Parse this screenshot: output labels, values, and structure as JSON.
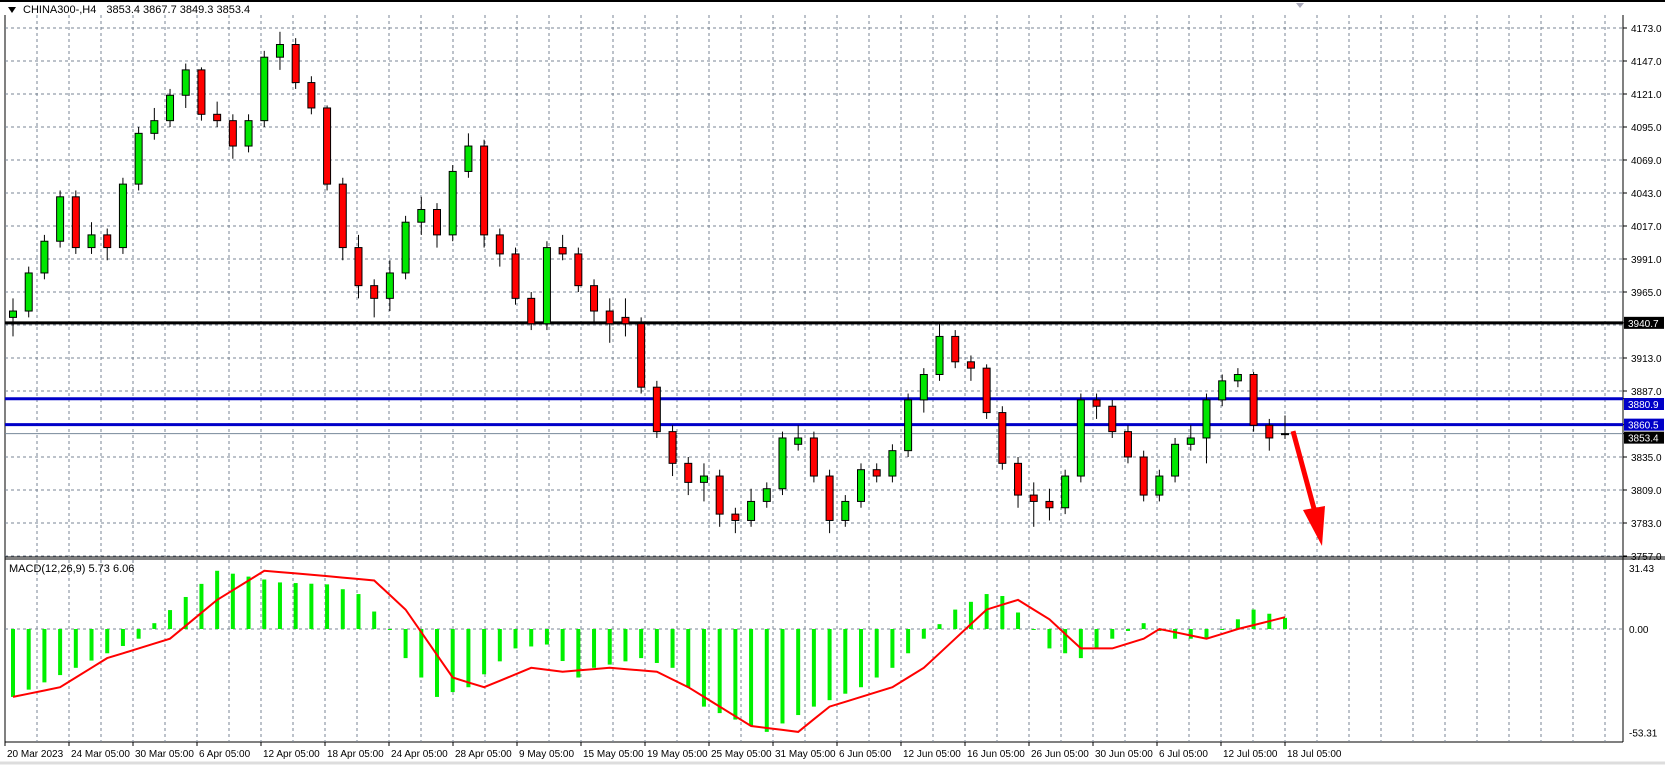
{
  "header": {
    "symbol": "CHINA300-,H4",
    "ohlc": "3853.4 3867.7 3849.3 3853.4"
  },
  "macd_label": {
    "name": "MACD(12,26,9)",
    "values": "5.73 6.06"
  },
  "colors": {
    "bull": "#00e600",
    "bear": "#ff0000",
    "histogram": "#00f000",
    "signal": "#ff0000",
    "support_resistance": "#0000c8",
    "key_level": "#000000",
    "bid_line": "#778899",
    "arrow": "#ff0000",
    "grid": "#7a8594"
  },
  "chart_data": [
    {
      "type": "candlestick",
      "symbol": "CHINA300-",
      "timeframe": "H4",
      "ylim": [
        3757,
        4173
      ],
      "y_ticks": [
        "4173.0",
        "4147.0",
        "4121.0",
        "4095.0",
        "4069.0",
        "4043.0",
        "4017.0",
        "3991.0",
        "3965.0",
        "3913.0",
        "3887.0",
        "3835.0",
        "3809.0",
        "3783.0",
        "3757.0"
      ],
      "grid_levels": [
        4173,
        4147,
        4121,
        4095,
        4069,
        4043,
        4017,
        3991,
        3965,
        3939,
        3913,
        3887,
        3861,
        3835,
        3809,
        3783,
        3757
      ],
      "x_ticks": [
        "20 Mar 2023",
        "24 Mar 05:00",
        "30 Mar 05:00",
        "6 Apr 05:00",
        "12 Apr 05:00",
        "18 Apr 05:00",
        "24 Apr 05:00",
        "28 Apr 05:00",
        "9 May 05:00",
        "15 May 05:00",
        "19 May 05:00",
        "25 May 05:00",
        "31 May 05:00",
        "6 Jun 05:00",
        "12 Jun 05:00",
        "16 Jun 05:00",
        "26 Jun 05:00",
        "30 Jun 05:00",
        "6 Jul 05:00",
        "12 Jul 05:00",
        "18 Jul 05:00"
      ],
      "grid": true,
      "levels": [
        {
          "value": 3940.7,
          "label": "3940.7",
          "color": "#000000"
        },
        {
          "value": 3880.9,
          "label": "3880.9",
          "color": "#0000c8"
        },
        {
          "value": 3860.5,
          "label": "3860.5",
          "color": "#0000c8"
        },
        {
          "value": 3853.4,
          "label": "3853.4",
          "color": "#778899",
          "bid": true
        }
      ],
      "annotation": {
        "type": "arrow",
        "direction": "down",
        "from_price": 3853,
        "to_price": 3768
      },
      "candles_ohlc": [
        [
          3945,
          3960,
          3930,
          3950
        ],
        [
          3950,
          3985,
          3945,
          3980
        ],
        [
          3980,
          4010,
          3975,
          4005
        ],
        [
          4005,
          4045,
          4000,
          4040
        ],
        [
          4040,
          4045,
          3995,
          4000
        ],
        [
          4000,
          4020,
          3995,
          4010
        ],
        [
          4010,
          4015,
          3990,
          4000
        ],
        [
          4000,
          4055,
          3995,
          4050
        ],
        [
          4050,
          4095,
          4045,
          4090
        ],
        [
          4090,
          4110,
          4085,
          4100
        ],
        [
          4100,
          4125,
          4095,
          4120
        ],
        [
          4120,
          4145,
          4110,
          4140
        ],
        [
          4140,
          4142,
          4100,
          4105
        ],
        [
          4105,
          4115,
          4095,
          4100
        ],
        [
          4100,
          4105,
          4070,
          4080
        ],
        [
          4080,
          4105,
          4075,
          4100
        ],
        [
          4100,
          4155,
          4095,
          4150
        ],
        [
          4150,
          4170,
          4140,
          4160
        ],
        [
          4160,
          4165,
          4125,
          4130
        ],
        [
          4130,
          4135,
          4105,
          4110
        ],
        [
          4110,
          4112,
          4045,
          4050
        ],
        [
          4050,
          4055,
          3990,
          4000
        ],
        [
          4000,
          4010,
          3960,
          3970
        ],
        [
          3970,
          3975,
          3945,
          3960
        ],
        [
          3960,
          3990,
          3950,
          3980
        ],
        [
          3980,
          4025,
          3975,
          4020
        ],
        [
          4020,
          4040,
          4010,
          4030
        ],
        [
          4030,
          4035,
          4000,
          4010
        ],
        [
          4010,
          4065,
          4005,
          4060
        ],
        [
          4060,
          4090,
          4055,
          4080
        ],
        [
          4080,
          4085,
          4000,
          4010
        ],
        [
          4010,
          4015,
          3985,
          3995
        ],
        [
          3995,
          4000,
          3955,
          3960
        ],
        [
          3960,
          3965,
          3935,
          3940
        ],
        [
          3940,
          4005,
          3935,
          4000
        ],
        [
          4000,
          4010,
          3990,
          3995
        ],
        [
          3995,
          4000,
          3965,
          3970
        ],
        [
          3970,
          3975,
          3940,
          3950
        ],
        [
          3950,
          3960,
          3925,
          3940
        ],
        [
          3945,
          3960,
          3930,
          3940
        ],
        [
          3940,
          3945,
          3885,
          3890
        ],
        [
          3890,
          3895,
          3850,
          3855
        ],
        [
          3855,
          3860,
          3820,
          3830
        ],
        [
          3830,
          3835,
          3805,
          3815
        ],
        [
          3815,
          3830,
          3800,
          3820
        ],
        [
          3820,
          3825,
          3780,
          3790
        ],
        [
          3790,
          3795,
          3775,
          3785
        ],
        [
          3785,
          3810,
          3780,
          3800
        ],
        [
          3800,
          3815,
          3795,
          3810
        ],
        [
          3810,
          3855,
          3805,
          3850
        ],
        [
          3845,
          3860,
          3840,
          3850
        ],
        [
          3850,
          3855,
          3815,
          3820
        ],
        [
          3820,
          3825,
          3775,
          3785
        ],
        [
          3785,
          3805,
          3780,
          3800
        ],
        [
          3800,
          3830,
          3795,
          3825
        ],
        [
          3825,
          3830,
          3815,
          3820
        ],
        [
          3820,
          3845,
          3815,
          3840
        ],
        [
          3840,
          3885,
          3835,
          3880
        ],
        [
          3880,
          3905,
          3870,
          3900
        ],
        [
          3900,
          3940,
          3895,
          3930
        ],
        [
          3930,
          3935,
          3905,
          3910
        ],
        [
          3910,
          3915,
          3895,
          3905
        ],
        [
          3905,
          3908,
          3865,
          3870
        ],
        [
          3870,
          3875,
          3825,
          3830
        ],
        [
          3830,
          3835,
          3795,
          3805
        ],
        [
          3805,
          3815,
          3780,
          3800
        ],
        [
          3800,
          3810,
          3785,
          3795
        ],
        [
          3795,
          3825,
          3790,
          3820
        ],
        [
          3820,
          3885,
          3815,
          3880
        ],
        [
          3880,
          3885,
          3865,
          3875
        ],
        [
          3875,
          3880,
          3850,
          3855
        ],
        [
          3855,
          3860,
          3830,
          3835
        ],
        [
          3835,
          3840,
          3800,
          3805
        ],
        [
          3805,
          3825,
          3800,
          3820
        ],
        [
          3820,
          3850,
          3815,
          3845
        ],
        [
          3845,
          3860,
          3840,
          3850
        ],
        [
          3850,
          3885,
          3830,
          3880
        ],
        [
          3880,
          3900,
          3875,
          3895
        ],
        [
          3895,
          3905,
          3890,
          3900
        ],
        [
          3900,
          3902,
          3855,
          3860
        ],
        [
          3860,
          3865,
          3840,
          3850
        ],
        [
          3853.4,
          3867.7,
          3849.3,
          3853.4
        ]
      ]
    },
    {
      "type": "bar+line",
      "indicator": "MACD(12,26,9)",
      "ylim": [
        -53.31,
        31.43
      ],
      "y_ticks": [
        "31.43",
        "0.00",
        "-53.31"
      ],
      "histogram_points": [
        [
          0,
          -35
        ],
        [
          4,
          -20
        ],
        [
          8,
          -5
        ],
        [
          9,
          3
        ],
        [
          13,
          30
        ],
        [
          17,
          24
        ],
        [
          20,
          23
        ],
        [
          22,
          18
        ],
        [
          24,
          0
        ],
        [
          25,
          -15
        ],
        [
          27,
          -35
        ],
        [
          29,
          -30
        ],
        [
          32,
          -10
        ],
        [
          34,
          -8
        ],
        [
          36,
          -25
        ],
        [
          37,
          -20
        ],
        [
          40,
          -15
        ],
        [
          42,
          -20
        ],
        [
          44,
          -40
        ],
        [
          47,
          -50
        ],
        [
          48,
          -53
        ],
        [
          51,
          -40
        ],
        [
          54,
          -30
        ],
        [
          56,
          -20
        ],
        [
          58,
          -5
        ],
        [
          60,
          10
        ],
        [
          62,
          18
        ],
        [
          63,
          17
        ],
        [
          65,
          0
        ],
        [
          66,
          -10
        ],
        [
          68,
          -15
        ],
        [
          70,
          -5
        ],
        [
          72,
          3
        ],
        [
          74,
          -5
        ],
        [
          76,
          -5
        ],
        [
          78,
          5
        ],
        [
          79,
          10
        ],
        [
          81,
          5.73
        ]
      ],
      "signal_points": [
        [
          0,
          -35
        ],
        [
          3,
          -30
        ],
        [
          6,
          -15
        ],
        [
          10,
          -5
        ],
        [
          13,
          15
        ],
        [
          16,
          30
        ],
        [
          19,
          28
        ],
        [
          23,
          25
        ],
        [
          25,
          10
        ],
        [
          28,
          -25
        ],
        [
          30,
          -30
        ],
        [
          33,
          -20
        ],
        [
          35,
          -22
        ],
        [
          38,
          -20
        ],
        [
          41,
          -22
        ],
        [
          43,
          -30
        ],
        [
          47,
          -50
        ],
        [
          50,
          -53
        ],
        [
          52,
          -40
        ],
        [
          56,
          -30
        ],
        [
          58,
          -20
        ],
        [
          60,
          -5
        ],
        [
          62,
          10
        ],
        [
          64,
          15
        ],
        [
          66,
          5
        ],
        [
          68,
          -10
        ],
        [
          70,
          -10
        ],
        [
          72,
          -5
        ],
        [
          73,
          0
        ],
        [
          76,
          -5
        ],
        [
          78,
          0
        ],
        [
          81,
          6.06
        ]
      ]
    }
  ]
}
